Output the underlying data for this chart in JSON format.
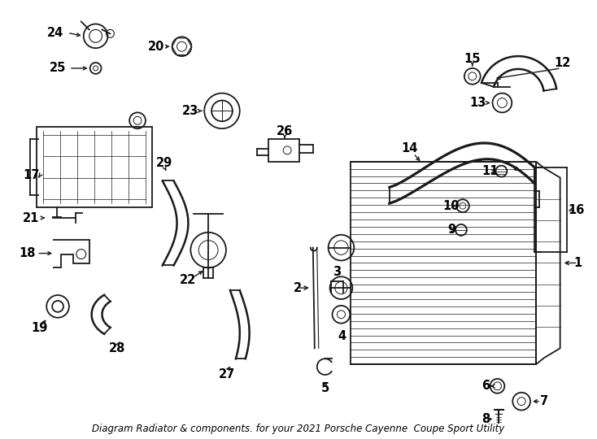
{
  "title": "Diagram Radiator & components. for your 2021 Porsche Cayenne  Coupe Sport Utility",
  "bg_color": "#ffffff",
  "line_color": "#1a1a1a",
  "text_color": "#000000",
  "label_fontsize": 10.5,
  "title_fontsize": 8.5,
  "fig_w": 7.34,
  "fig_h": 5.4,
  "dpi": 100
}
